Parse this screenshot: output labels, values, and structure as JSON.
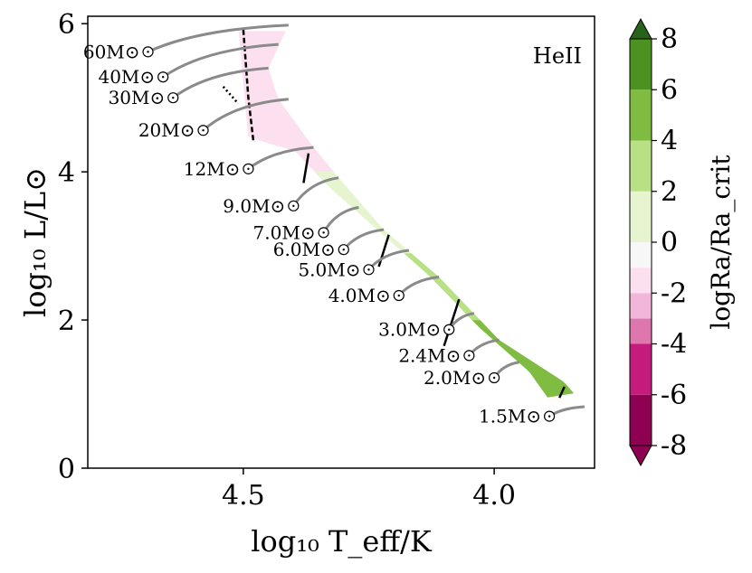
{
  "chart_data": {
    "type": "scatter",
    "panel_label": "HeII",
    "xlabel": "log₁₀ T_eff/K",
    "ylabel": "log₁₀ L/L⊙",
    "xlim": [
      4.81,
      3.8
    ],
    "ylim": [
      0,
      6.1
    ],
    "x_inverted": true,
    "xticks": [
      4.5,
      4.0
    ],
    "xtick_labels": [
      "4.5",
      "4.0"
    ],
    "yticks": [
      0,
      2,
      4,
      6
    ],
    "ytick_labels": [
      "0",
      "2",
      "4",
      "6"
    ],
    "grid": false,
    "colorbar": {
      "label": "logRa/Ra_crit",
      "ticks": [
        "8",
        "6",
        "4",
        "2",
        "0",
        "-2",
        "-4",
        "-6",
        "-8"
      ],
      "levels": [
        -8,
        -6,
        -4,
        -3,
        -2,
        -1,
        0,
        2,
        4,
        6,
        8
      ],
      "colors": [
        "#8e0152",
        "#c51b7d",
        "#de77ae",
        "#f1b6da",
        "#fde0ef",
        "#f7f7f7",
        "#e6f5d0",
        "#b8e186",
        "#7fbc41",
        "#4d9221",
        "#276419"
      ],
      "extend": "both"
    },
    "region_color_bands": [
      {
        "lum": [
          4.0,
          5.9
        ],
        "value": -1.5
      },
      {
        "lum": [
          2.4,
          4.0
        ],
        "value": 1.0
      },
      {
        "lum": [
          2.0,
          2.9
        ],
        "value": 3.0
      },
      {
        "lum": [
          0.9,
          2.0
        ],
        "value": 5.5
      }
    ],
    "tracks": [
      {
        "label": "60M⊙",
        "zams": [
          4.69,
          5.62
        ],
        "end": [
          4.41,
          5.98
        ]
      },
      {
        "label": "40M⊙",
        "zams": [
          4.66,
          5.28
        ],
        "end": [
          4.43,
          5.72
        ]
      },
      {
        "label": "30M⊙",
        "zams": [
          4.64,
          5.0
        ],
        "end": [
          4.45,
          5.4
        ]
      },
      {
        "label": "20M⊙",
        "zams": [
          4.58,
          4.56
        ],
        "end": [
          4.41,
          4.98
        ]
      },
      {
        "label": "12M⊙",
        "zams": [
          4.49,
          4.04
        ],
        "end": [
          4.36,
          4.33
        ]
      },
      {
        "label": "9.0M⊙",
        "zams": [
          4.4,
          3.54
        ],
        "end": [
          4.31,
          3.92
        ]
      },
      {
        "label": "7.0M⊙",
        "zams": [
          4.34,
          3.18
        ],
        "end": [
          4.27,
          3.52
        ]
      },
      {
        "label": "6.0M⊙",
        "zams": [
          4.3,
          2.95
        ],
        "end": [
          4.22,
          3.22
        ]
      },
      {
        "label": "5.0M⊙",
        "zams": [
          4.25,
          2.68
        ],
        "end": [
          4.17,
          2.94
        ]
      },
      {
        "label": "4.0M⊙",
        "zams": [
          4.19,
          2.33
        ],
        "end": [
          4.11,
          2.58
        ]
      },
      {
        "label": "3.0M⊙",
        "zams": [
          4.09,
          1.87
        ],
        "end": [
          4.04,
          2.09
        ]
      },
      {
        "label": "2.4M⊙",
        "zams": [
          4.05,
          1.52
        ],
        "end": [
          3.99,
          1.73
        ]
      },
      {
        "label": "2.0M⊙",
        "zams": [
          4.0,
          1.22
        ],
        "end": [
          3.95,
          1.43
        ]
      },
      {
        "label": "1.5M⊙",
        "zams": [
          3.89,
          0.7
        ],
        "end": [
          3.82,
          0.83
        ]
      }
    ],
    "boundary_lines": [
      {
        "style": "dashed",
        "points": [
          [
            4.5,
            5.92
          ],
          [
            4.49,
            5.0
          ],
          [
            4.48,
            4.42
          ]
        ]
      },
      {
        "style": "dotted",
        "points": [
          [
            4.54,
            5.15
          ],
          [
            4.51,
            4.92
          ]
        ]
      },
      {
        "style": "solid",
        "points": [
          [
            4.37,
            4.25
          ],
          [
            4.38,
            3.85
          ]
        ]
      },
      {
        "style": "solid",
        "points": [
          [
            4.21,
            3.15
          ],
          [
            4.23,
            2.72
          ]
        ]
      },
      {
        "style": "solid",
        "points": [
          [
            4.07,
            2.28
          ],
          [
            4.1,
            1.65
          ]
        ]
      },
      {
        "style": "solid",
        "points": [
          [
            3.86,
            1.1
          ],
          [
            3.87,
            0.95
          ]
        ]
      }
    ]
  }
}
